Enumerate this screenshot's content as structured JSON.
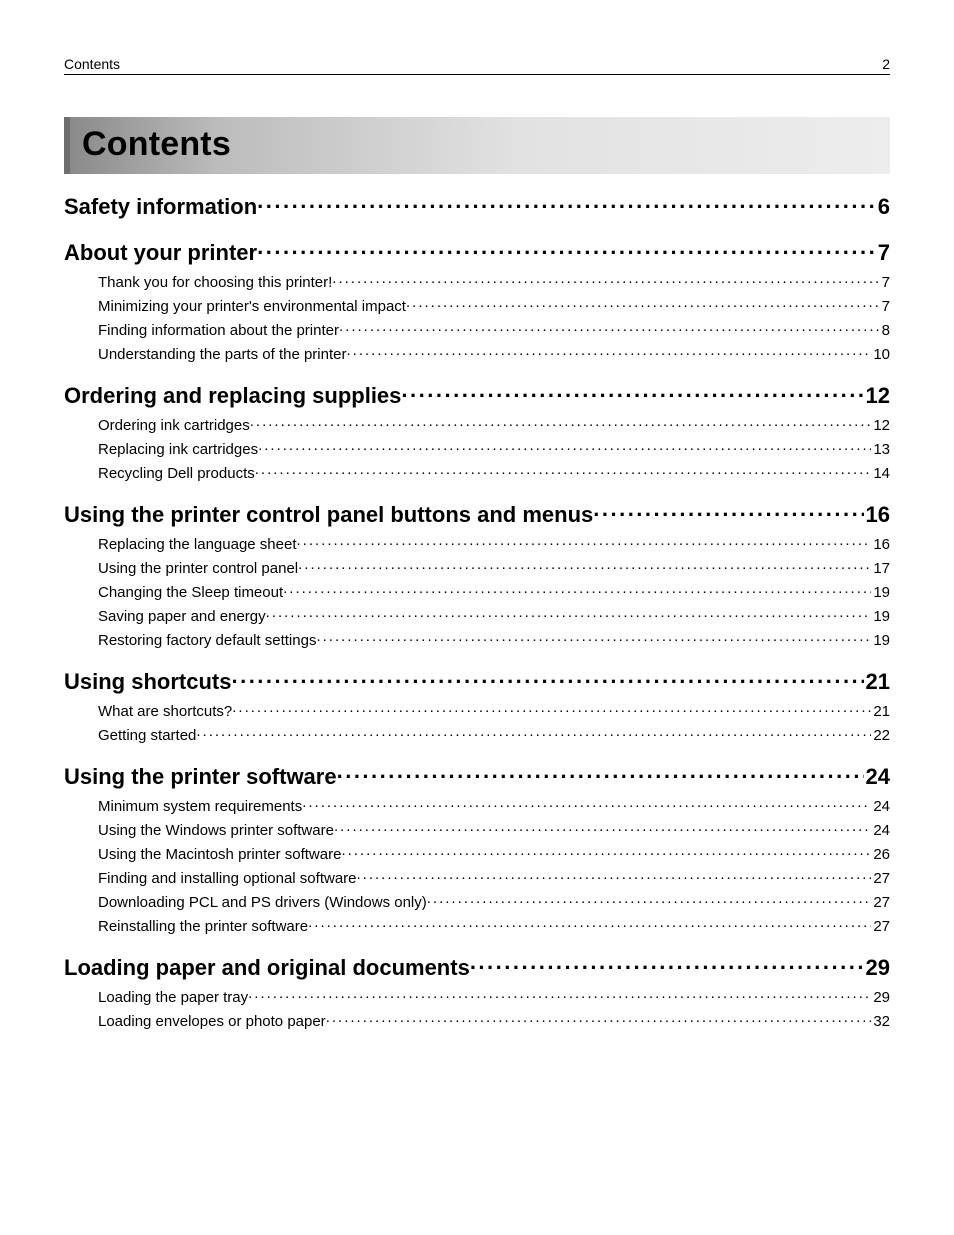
{
  "header": {
    "section": "Contents",
    "page_number": "2"
  },
  "title": "Contents",
  "toc": [
    {
      "level": 1,
      "label": "Safety information",
      "page": "6"
    },
    {
      "level": 1,
      "label": "About your printer",
      "page": "7"
    },
    {
      "level": 2,
      "label": "Thank you for choosing this printer!",
      "page": "7"
    },
    {
      "level": 2,
      "label": "Minimizing your printer's environmental impact",
      "page": "7"
    },
    {
      "level": 2,
      "label": "Finding information about the printer",
      "page": "8"
    },
    {
      "level": 2,
      "label": "Understanding the parts of the printer",
      "page": "10"
    },
    {
      "level": 1,
      "label": "Ordering and replacing supplies",
      "page": "12"
    },
    {
      "level": 2,
      "label": "Ordering ink cartridges",
      "page": "12"
    },
    {
      "level": 2,
      "label": "Replacing ink cartridges",
      "page": "13"
    },
    {
      "level": 2,
      "label": "Recycling Dell products",
      "page": "14"
    },
    {
      "level": 1,
      "label": "Using the printer control panel buttons and menus",
      "page": "16"
    },
    {
      "level": 2,
      "label": "Replacing the language sheet",
      "page": "16"
    },
    {
      "level": 2,
      "label": "Using the printer control panel",
      "page": "17"
    },
    {
      "level": 2,
      "label": "Changing the Sleep timeout",
      "page": "19"
    },
    {
      "level": 2,
      "label": "Saving paper and energy",
      "page": "19"
    },
    {
      "level": 2,
      "label": "Restoring factory default settings",
      "page": "19"
    },
    {
      "level": 1,
      "label": "Using shortcuts",
      "page": "21"
    },
    {
      "level": 2,
      "label": "What are shortcuts?",
      "page": "21"
    },
    {
      "level": 2,
      "label": "Getting started",
      "page": "22"
    },
    {
      "level": 1,
      "label": "Using the printer software",
      "page": "24"
    },
    {
      "level": 2,
      "label": "Minimum system requirements",
      "page": "24"
    },
    {
      "level": 2,
      "label": "Using the Windows printer software",
      "page": "24"
    },
    {
      "level": 2,
      "label": "Using the Macintosh printer software",
      "page": "26"
    },
    {
      "level": 2,
      "label": "Finding and installing optional software",
      "page": "27"
    },
    {
      "level": 2,
      "label": "Downloading PCL and PS drivers (Windows only)",
      "page": "27"
    },
    {
      "level": 2,
      "label": "Reinstalling the printer software",
      "page": "27"
    },
    {
      "level": 1,
      "label": "Loading paper and original documents",
      "page": "29"
    },
    {
      "level": 2,
      "label": "Loading the paper tray",
      "page": "29"
    },
    {
      "level": 2,
      "label": "Loading envelopes or photo paper",
      "page": "32"
    }
  ]
}
